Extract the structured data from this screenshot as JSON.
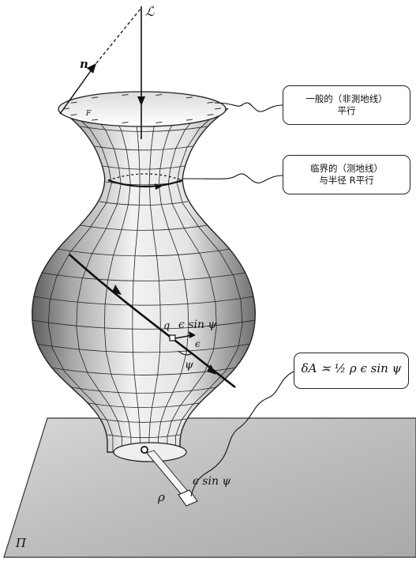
{
  "callouts": {
    "general_line1": "一般的（非測地线）",
    "general_line2": "平行",
    "critical_line1": "临界的（测地线）",
    "critical_line2": "与半径 R平行",
    "area_formula": "δA ≍ ½ ρ ϵ sin ψ"
  },
  "labels": {
    "axis": "ℒ",
    "normal": "n",
    "point_q": "q",
    "epsilon_sin_psi_upper": "ϵ sin ψ",
    "epsilon": "ϵ",
    "psi": "ψ",
    "rho": "ρ",
    "epsilon_sin_psi_lower": "ϵ sin ψ",
    "plane": "Π",
    "rim_marker": "F"
  },
  "colors": {
    "ink": "#111111",
    "plane_fill": "#c9c9c9",
    "surface_light": "#ededed",
    "surface_dark": "#7a7a7a"
  }
}
